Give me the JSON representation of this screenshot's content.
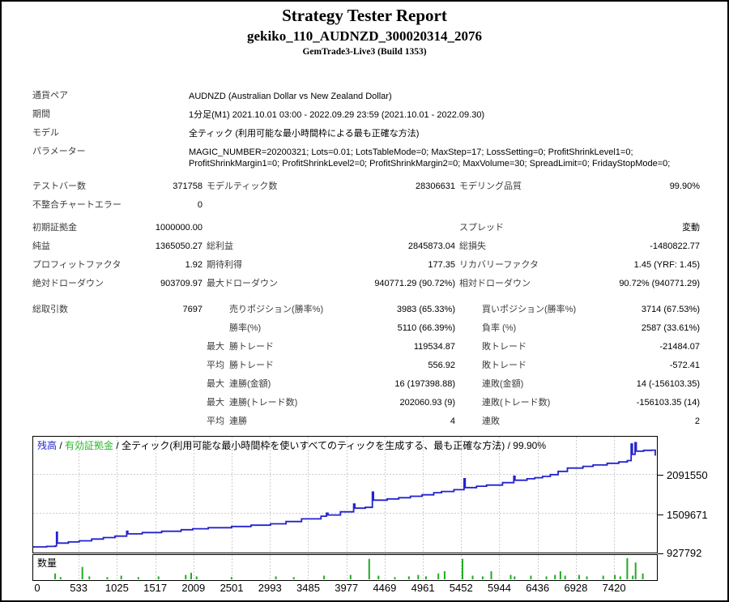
{
  "header": {
    "title": "Strategy Tester Report",
    "subtitle": "gekiko_110_AUDNZD_300020314_2076",
    "build": "GemTrade3-Live3 (Build 1353)"
  },
  "settings_rows": [
    {
      "label": "通貨ペア",
      "value": "AUDNZD (Australian Dollar vs New Zealand Dollar)"
    },
    {
      "label": "期間",
      "value": "1分足(M1) 2021.10.01 03:00 - 2022.09.29 23:59 (2021.10.01 - 2022.09.30)"
    },
    {
      "label": "モデル",
      "value": "全ティック (利用可能な最小時間枠による最も正確な方法)"
    },
    {
      "label": "パラメーター",
      "value": "MAGIC_NUMBER=20200321; Lots=0.01; LotsTableMode=0; MaxStep=17; LossSetting=0; ProfitShrinkLevel1=0; ProfitShrinkMargin1=0; ProfitShrinkLevel2=0; ProfitShrinkMargin2=0; MaxVolume=30; SpreadLimit=0; FridayStopMode=0;"
    }
  ],
  "quality_rows": [
    {
      "l1": "テストバー数",
      "v1": "371758",
      "l2": "モデルティック数",
      "v2": "28306631",
      "l3": "モデリング品質",
      "v3": "99.90%"
    },
    {
      "l1": "不整合チャートエラー",
      "v1": "0"
    }
  ],
  "stats_rows": [
    {
      "l1": "初期証拠金",
      "v1": "1000000.00",
      "l3": "スプレッド",
      "v3": "変動"
    },
    {
      "l1": "純益",
      "v1": "1365050.27",
      "l2": "総利益",
      "v2": "2845873.04",
      "l3": "総損失",
      "v3": "-1480822.77"
    },
    {
      "l1": "プロフィットファクタ",
      "v1": "1.92",
      "l2": "期待利得",
      "v2": "177.35",
      "l3": "リカバリーファクタ",
      "v3": "1.45 (YRF: 1.45)"
    },
    {
      "l1": "絶対ドローダウン",
      "v1": "903709.97",
      "l2": "最大ドローダウン",
      "v2": "940771.29 (90.72%)",
      "l3": "相対ドローダウン",
      "v3": "90.72% (940771.29)"
    }
  ],
  "trade_rows": [
    {
      "l1": "総取引数",
      "v1": "7697",
      "l2": "売りポジション(勝率%)",
      "v2": "3983 (65.33%)",
      "l3": "買いポジション(勝率%)",
      "v3": "3714 (67.53%)"
    },
    {
      "l2": "勝率(%)",
      "v2": "5110 (66.39%)",
      "l3": "負率 (%)",
      "v3": "2587 (33.61%)"
    },
    {
      "q": "最大",
      "l2": "勝トレード",
      "v2": "119534.87",
      "l3": "敗トレード",
      "v3": "-21484.07"
    },
    {
      "q": "平均",
      "l2": "勝トレード",
      "v2": "556.92",
      "l3": "敗トレード",
      "v3": "-572.41"
    },
    {
      "q": "最大",
      "l2": "連勝(金額)",
      "v2": "16 (197398.88)",
      "l3": "連敗(金額)",
      "v3": "14 (-156103.35)"
    },
    {
      "q": "最大",
      "l2": "連勝(トレード数)",
      "v2": "202060.93 (9)",
      "l3": "連敗(トレード数)",
      "v3": "-156103.35 (14)"
    },
    {
      "q": "平均",
      "l2": "連勝",
      "v2": "4",
      "l3": "連敗",
      "v3": "2"
    }
  ],
  "chart_data": [
    {
      "type": "line",
      "name": "balance",
      "legend": [
        "残高",
        "有効証拠金",
        "全ティック(利用可能な最小時間枠を使いすべてのティックを生成する、最も正確な方法) / 99.90%"
      ],
      "legend_sep": " / ",
      "color": "#2222cc",
      "equity_color": "#2db82d",
      "grid_color": "#cccccc",
      "xlim": [
        0,
        7950
      ],
      "xticks": [
        0,
        533,
        1025,
        1517,
        2009,
        2501,
        2993,
        3485,
        3977,
        4469,
        4961,
        5452,
        5944,
        6436,
        6928,
        7420
      ],
      "yticks": [
        927792,
        1509671,
        2091550
      ],
      "points": [
        [
          0,
          1000000
        ],
        [
          120,
          1008000
        ],
        [
          230,
          1014000
        ],
        [
          248,
          1220000
        ],
        [
          258,
          1058000
        ],
        [
          400,
          1075000
        ],
        [
          540,
          1092000
        ],
        [
          700,
          1118000
        ],
        [
          850,
          1140000
        ],
        [
          1000,
          1162000
        ],
        [
          1150,
          1235000
        ],
        [
          1165,
          1196000
        ],
        [
          1350,
          1215000
        ],
        [
          1600,
          1235000
        ],
        [
          1850,
          1258000
        ],
        [
          2000,
          1272000
        ],
        [
          2200,
          1288000
        ],
        [
          2500,
          1306000
        ],
        [
          2750,
          1325000
        ],
        [
          3000,
          1346000
        ],
        [
          3200,
          1380000
        ],
        [
          3400,
          1420000
        ],
        [
          3650,
          1460000
        ],
        [
          3720,
          1505000
        ],
        [
          3740,
          1478000
        ],
        [
          3900,
          1525000
        ],
        [
          4070,
          1640000
        ],
        [
          4085,
          1580000
        ],
        [
          4220,
          1592000
        ],
        [
          4310,
          1820000
        ],
        [
          4325,
          1700000
        ],
        [
          4500,
          1718000
        ],
        [
          4650,
          1736000
        ],
        [
          4800,
          1758000
        ],
        [
          4950,
          1780000
        ],
        [
          5100,
          1812000
        ],
        [
          5200,
          1830000
        ],
        [
          5360,
          1856000
        ],
        [
          5490,
          2020000
        ],
        [
          5505,
          1888000
        ],
        [
          5650,
          1908000
        ],
        [
          5780,
          1926000
        ],
        [
          5985,
          1962000
        ],
        [
          6130,
          2058000
        ],
        [
          6145,
          1998000
        ],
        [
          6300,
          2020000
        ],
        [
          6400,
          2036000
        ],
        [
          6500,
          2055000
        ],
        [
          6600,
          2082000
        ],
        [
          6700,
          2130000
        ],
        [
          6820,
          2180000
        ],
        [
          7020,
          2206000
        ],
        [
          7150,
          2226000
        ],
        [
          7330,
          2252000
        ],
        [
          7480,
          2272000
        ],
        [
          7590,
          2292000
        ],
        [
          7640,
          2540000
        ],
        [
          7655,
          2386000
        ],
        [
          7690,
          2560000
        ],
        [
          7705,
          2432000
        ],
        [
          7800,
          2446000
        ],
        [
          7900,
          2448000
        ],
        [
          7950,
          2365050
        ]
      ]
    },
    {
      "type": "bar",
      "name": "volume",
      "label": "数量",
      "color": "#22aa22",
      "ylim": [
        0,
        30
      ],
      "points": [
        [
          230,
          8
        ],
        [
          300,
          3
        ],
        [
          580,
          17
        ],
        [
          670,
          4
        ],
        [
          900,
          3
        ],
        [
          1080,
          5
        ],
        [
          1300,
          3
        ],
        [
          1560,
          4
        ],
        [
          1910,
          6
        ],
        [
          1980,
          9
        ],
        [
          2050,
          4
        ],
        [
          2500,
          3
        ],
        [
          3070,
          4
        ],
        [
          3300,
          3
        ],
        [
          3690,
          5
        ],
        [
          4030,
          6
        ],
        [
          4270,
          28
        ],
        [
          4390,
          5
        ],
        [
          4600,
          3
        ],
        [
          4780,
          4
        ],
        [
          4900,
          6
        ],
        [
          5000,
          4
        ],
        [
          5160,
          8
        ],
        [
          5240,
          11
        ],
        [
          5470,
          28
        ],
        [
          5600,
          5
        ],
        [
          5730,
          4
        ],
        [
          5840,
          11
        ],
        [
          6090,
          6
        ],
        [
          6140,
          4
        ],
        [
          6350,
          5
        ],
        [
          6550,
          4
        ],
        [
          6660,
          6
        ],
        [
          6730,
          11
        ],
        [
          6790,
          5
        ],
        [
          6970,
          6
        ],
        [
          7070,
          4
        ],
        [
          7280,
          5
        ],
        [
          7430,
          6
        ],
        [
          7500,
          4
        ],
        [
          7590,
          29
        ],
        [
          7660,
          5
        ],
        [
          7697,
          23
        ],
        [
          7790,
          8
        ]
      ]
    }
  ]
}
